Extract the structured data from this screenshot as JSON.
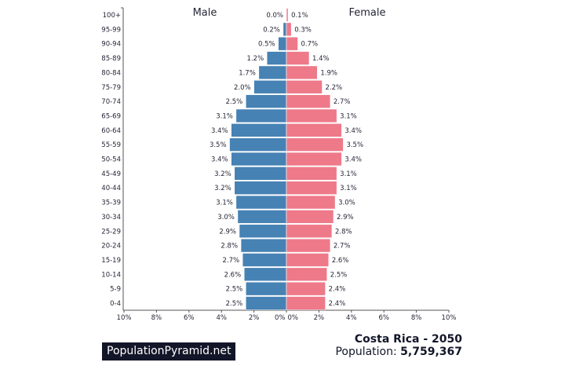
{
  "chart_data": {
    "type": "bar",
    "orientation": "horizontal-pyramid",
    "categories": [
      "100+",
      "95-99",
      "90-94",
      "85-89",
      "80-84",
      "75-79",
      "70-74",
      "65-69",
      "60-64",
      "55-59",
      "50-54",
      "45-49",
      "40-44",
      "35-39",
      "30-34",
      "25-29",
      "20-24",
      "15-19",
      "10-14",
      "5-9",
      "0-4"
    ],
    "series": [
      {
        "name": "Male",
        "color": "#4682b4",
        "values": [
          0.0,
          0.2,
          0.5,
          1.2,
          1.7,
          2.0,
          2.5,
          3.1,
          3.4,
          3.5,
          3.4,
          3.2,
          3.2,
          3.1,
          3.0,
          2.9,
          2.8,
          2.7,
          2.6,
          2.5,
          2.5
        ]
      },
      {
        "name": "Female",
        "color": "#ee7989",
        "values": [
          0.1,
          0.3,
          0.7,
          1.4,
          1.9,
          2.2,
          2.7,
          3.1,
          3.4,
          3.5,
          3.4,
          3.1,
          3.1,
          3.0,
          2.9,
          2.8,
          2.7,
          2.6,
          2.5,
          2.4,
          2.4
        ]
      }
    ],
    "xlim": [
      -10,
      10
    ],
    "xticks": [
      "10%",
      "8%",
      "6%",
      "4%",
      "2%",
      "0%",
      "0%",
      "2%",
      "4%",
      "6%",
      "8%",
      "10%"
    ],
    "grid": false,
    "unit": "%"
  },
  "brand": "PopulationPyramid.net",
  "country_year": "Costa Rica - 2050",
  "population_label": "Population:",
  "population_value": "5,759,367"
}
